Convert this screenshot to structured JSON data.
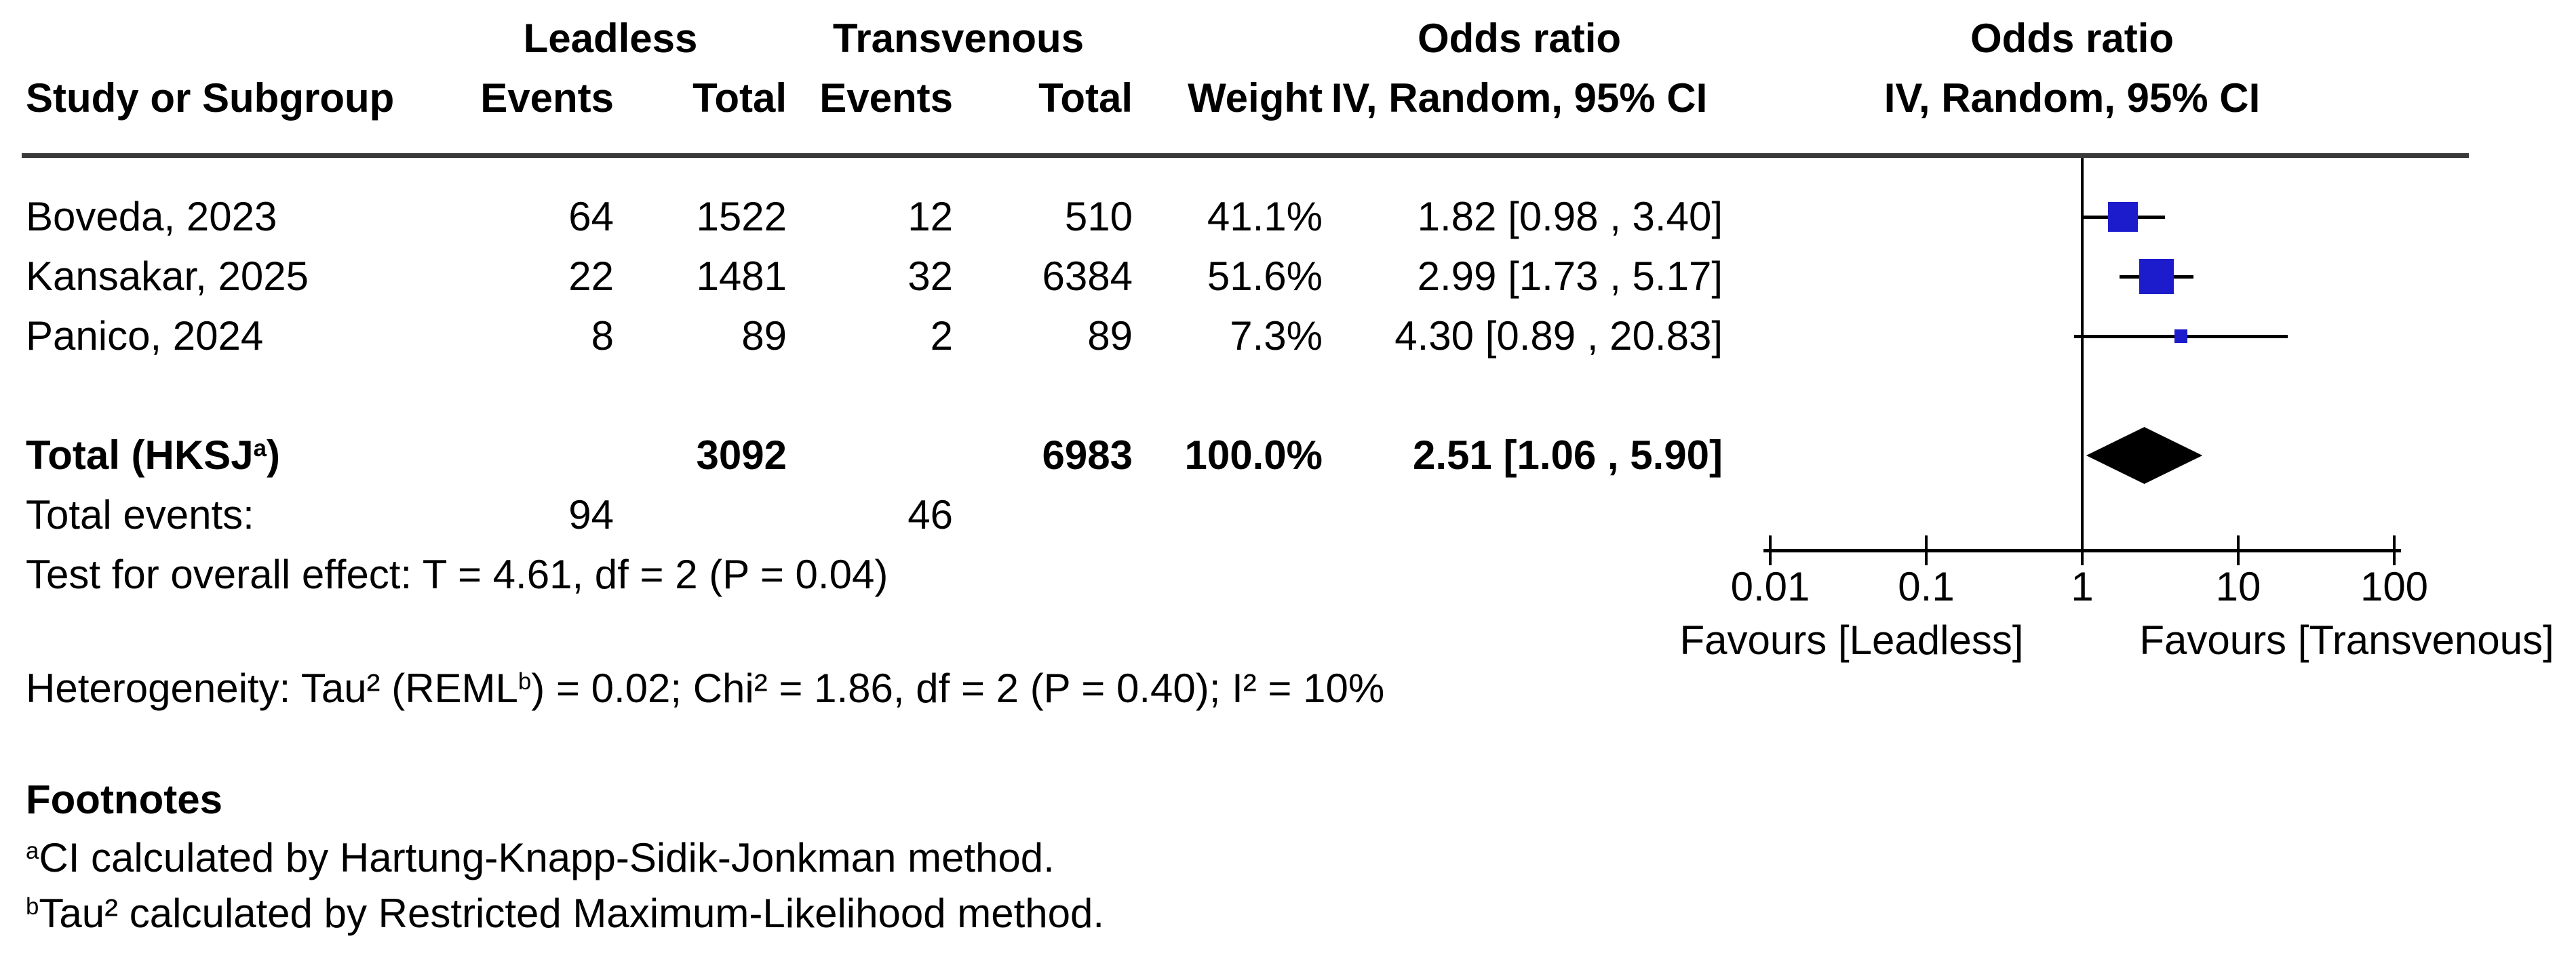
{
  "headers": {
    "leadless": "Leadless",
    "transvenous": "Transvenous",
    "odds_ratio": "Odds ratio",
    "study_or_subgroup": "Study or Subgroup",
    "events": "Events",
    "total": "Total",
    "weight": "Weight",
    "iv_random": "IV, Random, 95% CI"
  },
  "chart_data": {
    "type": "scatter",
    "subtype": "forest-plot",
    "effect_measure": "Odds ratio",
    "model": "IV, Random, 95% CI",
    "x_scale": "log10",
    "xlim": [
      0.01,
      100
    ],
    "x_ticks": [
      0.01,
      0.1,
      1,
      10,
      100
    ],
    "x_tick_labels": [
      "0.01",
      "0.1",
      "1",
      "10",
      "100"
    ],
    "favours_left": "Favours [Leadless]",
    "favours_right": "Favours [Transvenous]",
    "studies": [
      {
        "name": "Boveda, 2023",
        "events_leadless": "64",
        "total_leadless": "1522",
        "events_transvenous": "12",
        "total_transvenous": "510",
        "weight_pct": 41.1,
        "weight_label": "41.1%",
        "or": 1.82,
        "ci_low": 0.98,
        "ci_high": 3.4,
        "or_label": "1.82 [0.98 , 3.40]"
      },
      {
        "name": "Kansakar, 2025",
        "events_leadless": "22",
        "total_leadless": "1481",
        "events_transvenous": "32",
        "total_transvenous": "6384",
        "weight_pct": 51.6,
        "weight_label": "51.6%",
        "or": 2.99,
        "ci_low": 1.73,
        "ci_high": 5.17,
        "or_label": "2.99 [1.73 , 5.17]"
      },
      {
        "name": "Panico, 2024",
        "events_leadless": "8",
        "total_leadless": "89",
        "events_transvenous": "2",
        "total_transvenous": "89",
        "weight_pct": 7.3,
        "weight_label": "7.3%",
        "or": 4.3,
        "ci_low": 0.89,
        "ci_high": 20.83,
        "or_label": "4.30 [0.89 , 20.83]"
      }
    ],
    "total": {
      "label_pre": "Total (HKSJ",
      "label_sup": "a",
      "label_post": ")",
      "total_leadless": "3092",
      "total_transvenous": "6983",
      "weight_label": "100.0%",
      "or": 2.51,
      "ci_low": 1.06,
      "ci_high": 5.9,
      "or_label": "2.51 [1.06 , 5.90]"
    },
    "total_events": {
      "label": "Total events:",
      "leadless": "94",
      "transvenous": "46"
    },
    "overall_effect_test": "Test for overall effect: T = 4.61, df = 2 (P = 0.04)",
    "heterogeneity": {
      "pre": "Heterogeneity: Tau² (REML",
      "sup": "b",
      "post": ") = 0.02; Chi² = 1.86, df = 2 (P = 0.40); I² = 10%"
    }
  },
  "footnotes": {
    "heading": "Footnotes",
    "a_sup": "a",
    "a_text": "CI calculated by Hartung-Knapp-Sidik-Jonkman method.",
    "b_sup": "b",
    "b_text": "Tau² calculated by Restricted Maximum-Likelihood method."
  },
  "colors": {
    "square_blue": "#1c1ccd",
    "diamond_black": "#000000",
    "separator_gray": "#3a3a3a",
    "line_black": "#000000"
  }
}
